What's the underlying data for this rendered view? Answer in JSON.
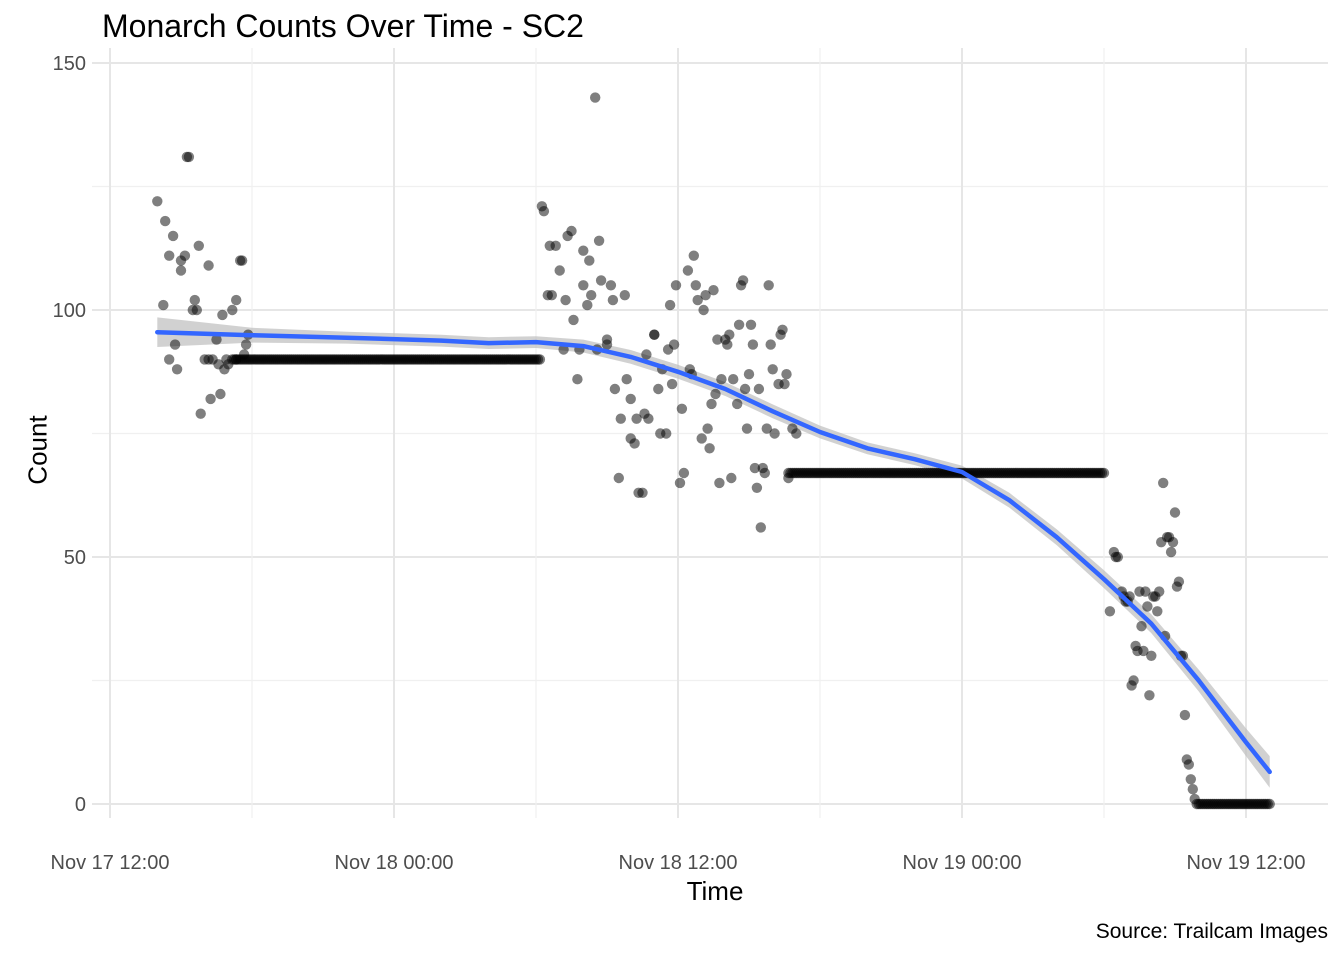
{
  "chart_data": {
    "type": "scatter",
    "title": "Monarch Counts Over Time - SC2",
    "xlabel": "Time",
    "ylabel": "Count",
    "caption": "Source: Trailcam Images",
    "x_axis": {
      "type": "datetime",
      "range": [
        "2025-11-17T12:00",
        "2025-11-19T14:00"
      ],
      "ticks": [
        {
          "t": "2025-11-17T12:00",
          "label": "Nov 17 12:00"
        },
        {
          "t": "2025-11-18T00:00",
          "label": "Nov 18 00:00"
        },
        {
          "t": "2025-11-18T12:00",
          "label": "Nov 18 12:00"
        },
        {
          "t": "2025-11-19T00:00",
          "label": "Nov 19 00:00"
        },
        {
          "t": "2025-11-19T12:00",
          "label": "Nov 19 12:00"
        }
      ]
    },
    "ylim": [
      -6,
      150
    ],
    "y_ticks": [
      0,
      50,
      100,
      150
    ],
    "grid": true,
    "point_color": "#000000",
    "point_opacity": 0.5,
    "points": [
      [
        "2025-11-17T14:00",
        122
      ],
      [
        "2025-11-17T14:15",
        101
      ],
      [
        "2025-11-17T14:20",
        118
      ],
      [
        "2025-11-17T14:30",
        111
      ],
      [
        "2025-11-17T14:30",
        90
      ],
      [
        "2025-11-17T14:40",
        115
      ],
      [
        "2025-11-17T14:45",
        93
      ],
      [
        "2025-11-17T14:50",
        88
      ],
      [
        "2025-11-17T15:00",
        108
      ],
      [
        "2025-11-17T15:00",
        110
      ],
      [
        "2025-11-17T15:10",
        111
      ],
      [
        "2025-11-17T15:15",
        131
      ],
      [
        "2025-11-17T15:20",
        131
      ],
      [
        "2025-11-17T15:30",
        100
      ],
      [
        "2025-11-17T15:35",
        102
      ],
      [
        "2025-11-17T15:40",
        100
      ],
      [
        "2025-11-17T15:45",
        113
      ],
      [
        "2025-11-17T15:50",
        79
      ],
      [
        "2025-11-17T16:00",
        90
      ],
      [
        "2025-11-17T16:10",
        109
      ],
      [
        "2025-11-17T16:10",
        90
      ],
      [
        "2025-11-17T16:15",
        82
      ],
      [
        "2025-11-17T16:20",
        90
      ],
      [
        "2025-11-17T16:30",
        94
      ],
      [
        "2025-11-17T16:35",
        89
      ],
      [
        "2025-11-17T16:40",
        83
      ],
      [
        "2025-11-17T16:45",
        99
      ],
      [
        "2025-11-17T16:50",
        88
      ],
      [
        "2025-11-17T16:55",
        90
      ],
      [
        "2025-11-17T17:00",
        89
      ],
      [
        "2025-11-17T17:10",
        100
      ],
      [
        "2025-11-17T17:20",
        102
      ],
      [
        "2025-11-17T17:20",
        90
      ],
      [
        "2025-11-17T17:30",
        110
      ],
      [
        "2025-11-17T17:35",
        110
      ],
      [
        "2025-11-17T17:40",
        91
      ],
      [
        "2025-11-17T17:45",
        93
      ],
      [
        "2025-11-17T17:50",
        95
      ],
      [
        "2025-11-18T06:15",
        121
      ],
      [
        "2025-11-18T06:20",
        120
      ],
      [
        "2025-11-18T06:30",
        103
      ],
      [
        "2025-11-18T06:35",
        113
      ],
      [
        "2025-11-18T06:40",
        103
      ],
      [
        "2025-11-18T06:50",
        113
      ],
      [
        "2025-11-18T07:00",
        108
      ],
      [
        "2025-11-18T07:10",
        92
      ],
      [
        "2025-11-18T07:15",
        102
      ],
      [
        "2025-11-18T07:20",
        115
      ],
      [
        "2025-11-18T07:30",
        116
      ],
      [
        "2025-11-18T07:35",
        98
      ],
      [
        "2025-11-18T07:45",
        86
      ],
      [
        "2025-11-18T07:50",
        92
      ],
      [
        "2025-11-18T08:00",
        112
      ],
      [
        "2025-11-18T08:00",
        105
      ],
      [
        "2025-11-18T08:10",
        101
      ],
      [
        "2025-11-18T08:15",
        110
      ],
      [
        "2025-11-18T08:20",
        103
      ],
      [
        "2025-11-18T08:30",
        143
      ],
      [
        "2025-11-18T08:35",
        92
      ],
      [
        "2025-11-18T08:40",
        114
      ],
      [
        "2025-11-18T08:45",
        106
      ],
      [
        "2025-11-18T09:00",
        94
      ],
      [
        "2025-11-18T09:00",
        93
      ],
      [
        "2025-11-18T09:10",
        105
      ],
      [
        "2025-11-18T09:15",
        102
      ],
      [
        "2025-11-18T09:20",
        84
      ],
      [
        "2025-11-18T09:30",
        66
      ],
      [
        "2025-11-18T09:35",
        78
      ],
      [
        "2025-11-18T09:45",
        103
      ],
      [
        "2025-11-18T09:50",
        86
      ],
      [
        "2025-11-18T10:00",
        74
      ],
      [
        "2025-11-18T10:00",
        82
      ],
      [
        "2025-11-18T10:10",
        73
      ],
      [
        "2025-11-18T10:15",
        78
      ],
      [
        "2025-11-18T10:20",
        63
      ],
      [
        "2025-11-18T10:30",
        63
      ],
      [
        "2025-11-18T10:35",
        79
      ],
      [
        "2025-11-18T10:40",
        91
      ],
      [
        "2025-11-18T10:45",
        78
      ],
      [
        "2025-11-18T11:00",
        95
      ],
      [
        "2025-11-18T11:00",
        95
      ],
      [
        "2025-11-18T11:10",
        84
      ],
      [
        "2025-11-18T11:15",
        75
      ],
      [
        "2025-11-18T11:20",
        88
      ],
      [
        "2025-11-18T11:30",
        75
      ],
      [
        "2025-11-18T11:35",
        92
      ],
      [
        "2025-11-18T11:40",
        101
      ],
      [
        "2025-11-18T11:45",
        85
      ],
      [
        "2025-11-18T11:50",
        93
      ],
      [
        "2025-11-18T11:55",
        105
      ],
      [
        "2025-11-18T12:05",
        65
      ],
      [
        "2025-11-18T12:10",
        80
      ],
      [
        "2025-11-18T12:15",
        67
      ],
      [
        "2025-11-18T12:25",
        108
      ],
      [
        "2025-11-18T12:30",
        88
      ],
      [
        "2025-11-18T12:35",
        87
      ],
      [
        "2025-11-18T12:40",
        111
      ],
      [
        "2025-11-18T12:45",
        105
      ],
      [
        "2025-11-18T12:50",
        102
      ],
      [
        "2025-11-18T13:00",
        74
      ],
      [
        "2025-11-18T13:05",
        100
      ],
      [
        "2025-11-18T13:10",
        103
      ],
      [
        "2025-11-18T13:15",
        76
      ],
      [
        "2025-11-18T13:20",
        72
      ],
      [
        "2025-11-18T13:25",
        81
      ],
      [
        "2025-11-18T13:30",
        104
      ],
      [
        "2025-11-18T13:35",
        83
      ],
      [
        "2025-11-18T13:40",
        94
      ],
      [
        "2025-11-18T13:45",
        65
      ],
      [
        "2025-11-18T13:50",
        86
      ],
      [
        "2025-11-18T14:00",
        94
      ],
      [
        "2025-11-18T14:05",
        93
      ],
      [
        "2025-11-18T14:10",
        95
      ],
      [
        "2025-11-18T14:15",
        66
      ],
      [
        "2025-11-18T14:20",
        86
      ],
      [
        "2025-11-18T14:30",
        81
      ],
      [
        "2025-11-18T14:35",
        97
      ],
      [
        "2025-11-18T14:40",
        105
      ],
      [
        "2025-11-18T14:45",
        106
      ],
      [
        "2025-11-18T14:50",
        84
      ],
      [
        "2025-11-18T14:55",
        76
      ],
      [
        "2025-11-18T15:00",
        87
      ],
      [
        "2025-11-18T15:05",
        97
      ],
      [
        "2025-11-18T15:10",
        93
      ],
      [
        "2025-11-18T15:15",
        68
      ],
      [
        "2025-11-18T15:20",
        64
      ],
      [
        "2025-11-18T15:25",
        84
      ],
      [
        "2025-11-18T15:30",
        56
      ],
      [
        "2025-11-18T15:35",
        68
      ],
      [
        "2025-11-18T15:40",
        67
      ],
      [
        "2025-11-18T15:45",
        76
      ],
      [
        "2025-11-18T15:50",
        105
      ],
      [
        "2025-11-18T15:55",
        93
      ],
      [
        "2025-11-18T16:00",
        88
      ],
      [
        "2025-11-18T16:05",
        75
      ],
      [
        "2025-11-18T16:15",
        85
      ],
      [
        "2025-11-18T16:20",
        95
      ],
      [
        "2025-11-18T16:25",
        96
      ],
      [
        "2025-11-18T16:30",
        85
      ],
      [
        "2025-11-18T16:35",
        87
      ],
      [
        "2025-11-18T16:40",
        66
      ],
      [
        "2025-11-18T16:50",
        76
      ],
      [
        "2025-11-18T17:00",
        75
      ],
      [
        "2025-11-19T06:15",
        39
      ],
      [
        "2025-11-19T06:25",
        51
      ],
      [
        "2025-11-19T06:30",
        50
      ],
      [
        "2025-11-19T06:35",
        50
      ],
      [
        "2025-11-19T06:45",
        43
      ],
      [
        "2025-11-19T06:50",
        42
      ],
      [
        "2025-11-19T06:55",
        41
      ],
      [
        "2025-11-19T07:00",
        41
      ],
      [
        "2025-11-19T07:05",
        42
      ],
      [
        "2025-11-19T07:10",
        24
      ],
      [
        "2025-11-19T07:15",
        25
      ],
      [
        "2025-11-19T07:20",
        32
      ],
      [
        "2025-11-19T07:25",
        31
      ],
      [
        "2025-11-19T07:30",
        43
      ],
      [
        "2025-11-19T07:35",
        36
      ],
      [
        "2025-11-19T07:40",
        31
      ],
      [
        "2025-11-19T07:45",
        43
      ],
      [
        "2025-11-19T07:50",
        40
      ],
      [
        "2025-11-19T07:55",
        22
      ],
      [
        "2025-11-19T08:00",
        30
      ],
      [
        "2025-11-19T08:05",
        42
      ],
      [
        "2025-11-19T08:10",
        42
      ],
      [
        "2025-11-19T08:15",
        39
      ],
      [
        "2025-11-19T08:20",
        43
      ],
      [
        "2025-11-19T08:25",
        53
      ],
      [
        "2025-11-19T08:30",
        65
      ],
      [
        "2025-11-19T08:35",
        34
      ],
      [
        "2025-11-19T08:40",
        54
      ],
      [
        "2025-11-19T08:45",
        54
      ],
      [
        "2025-11-19T08:50",
        51
      ],
      [
        "2025-11-19T08:55",
        53
      ],
      [
        "2025-11-19T09:00",
        59
      ],
      [
        "2025-11-19T09:05",
        44
      ],
      [
        "2025-11-19T09:10",
        45
      ],
      [
        "2025-11-19T09:15",
        30
      ],
      [
        "2025-11-19T09:20",
        30
      ],
      [
        "2025-11-19T09:25",
        18
      ],
      [
        "2025-11-19T09:30",
        9
      ],
      [
        "2025-11-19T09:35",
        8
      ],
      [
        "2025-11-19T09:40",
        5
      ],
      [
        "2025-11-19T09:45",
        3
      ],
      [
        "2025-11-19T09:50",
        1
      ],
      [
        "2025-11-19T09:55",
        0
      ]
    ],
    "constant_runs": [
      {
        "from": "2025-11-17T17:10",
        "to": "2025-11-18T06:10",
        "value": 90,
        "step_minutes": 5
      },
      {
        "from": "2025-11-18T16:40",
        "to": "2025-11-19T06:00",
        "value": 67,
        "step_minutes": 5
      },
      {
        "from": "2025-11-19T10:00",
        "to": "2025-11-19T13:00",
        "value": 0,
        "step_minutes": 5
      }
    ],
    "smooth": {
      "color": "#3366FF",
      "band_color": "#BEBEBE",
      "points": [
        [
          "2025-11-17T14:00",
          95.5,
          3.0
        ],
        [
          "2025-11-17T18:00",
          94.9,
          1.5
        ],
        [
          "2025-11-17T22:00",
          94.4,
          1.2
        ],
        [
          "2025-11-18T02:00",
          93.8,
          1.2
        ],
        [
          "2025-11-18T04:00",
          93.3,
          1.2
        ],
        [
          "2025-11-18T06:00",
          93.5,
          1.2
        ],
        [
          "2025-11-18T08:00",
          92.7,
          1.3
        ],
        [
          "2025-11-18T10:00",
          90.5,
          1.4
        ],
        [
          "2025-11-18T12:00",
          87.5,
          1.4
        ],
        [
          "2025-11-18T14:00",
          84.0,
          1.4
        ],
        [
          "2025-11-18T16:00",
          79.5,
          1.4
        ],
        [
          "2025-11-18T18:00",
          75.3,
          1.3
        ],
        [
          "2025-11-18T20:00",
          72.0,
          1.2
        ],
        [
          "2025-11-18T22:00",
          69.8,
          1.2
        ],
        [
          "2025-11-19T00:00",
          67.2,
          1.3
        ],
        [
          "2025-11-19T02:00",
          61.5,
          1.5
        ],
        [
          "2025-11-19T04:00",
          54.0,
          1.6
        ],
        [
          "2025-11-19T06:00",
          45.5,
          1.8
        ],
        [
          "2025-11-19T08:00",
          36.5,
          1.9
        ],
        [
          "2025-11-19T10:00",
          25.0,
          2.2
        ],
        [
          "2025-11-19T12:00",
          12.5,
          2.8
        ],
        [
          "2025-11-19T13:00",
          6.5,
          3.2
        ]
      ]
    }
  }
}
